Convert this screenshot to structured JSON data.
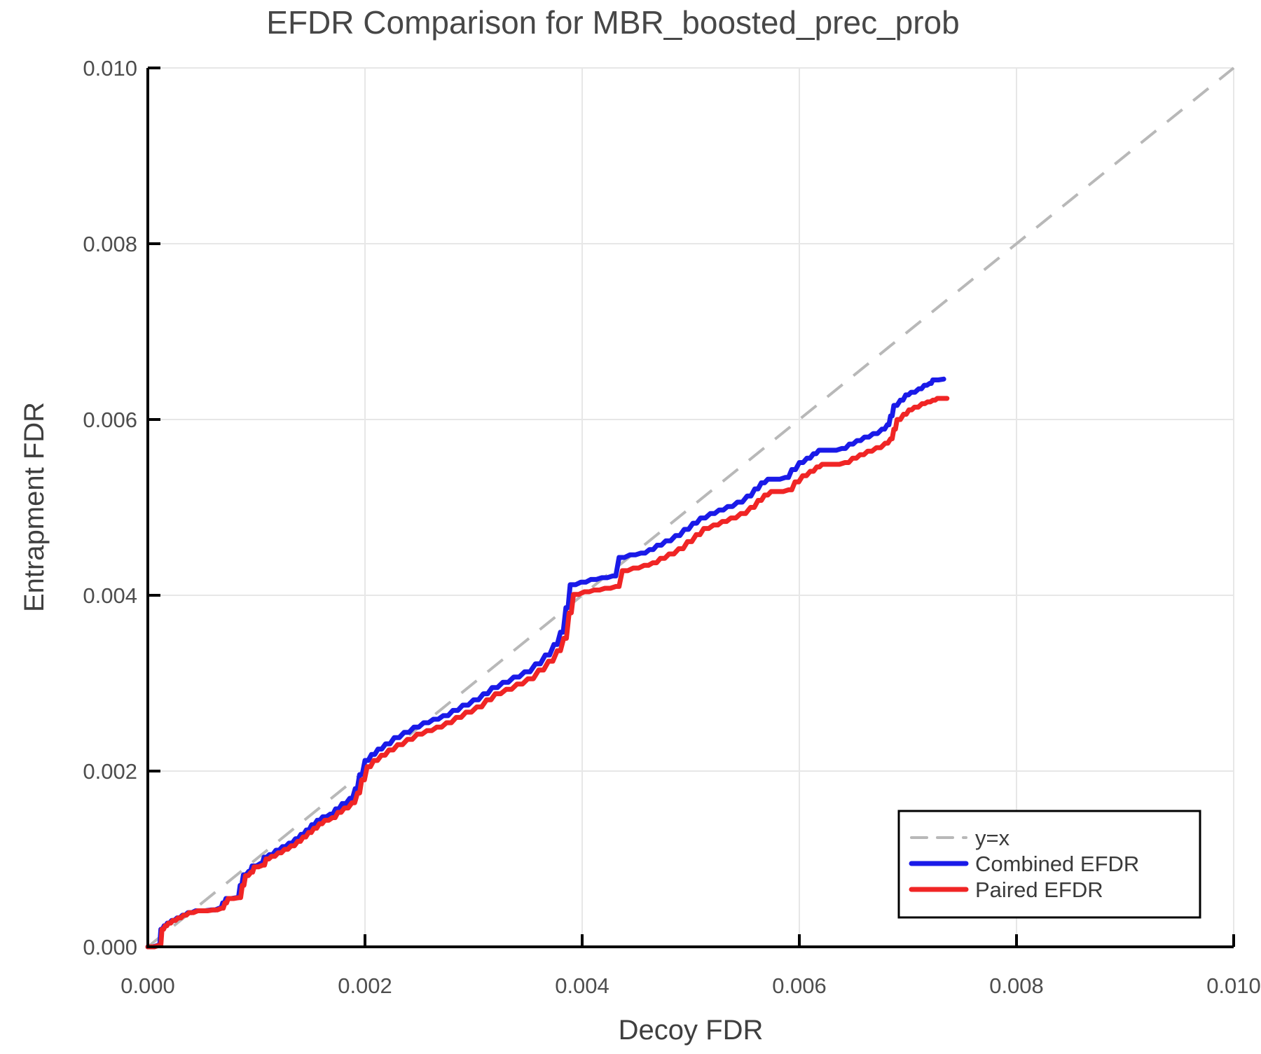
{
  "title": "EFDR Comparison for MBR_boosted_prec_prob",
  "colors": {
    "combined": "#1a1ae8",
    "paired": "#f02525",
    "identity": "#b8b8b8",
    "grid": "#e7e7e7",
    "axis": "#000000",
    "tick_label": "#4d4d4d",
    "axis_label": "#3f3f3f",
    "title": "#474747",
    "legend_text": "#3a3a3a",
    "legend_border": "#000000",
    "legend_bg": "#ffffff"
  },
  "chart_data": {
    "type": "line",
    "title": "EFDR Comparison for MBR_boosted_prec_prob",
    "xlabel": "Decoy FDR",
    "ylabel": "Entrapment FDR",
    "xlim": [
      0,
      0.01
    ],
    "ylim": [
      0,
      0.01
    ],
    "grid": true,
    "xticks": {
      "values": [
        0,
        0.002,
        0.004,
        0.006,
        0.008,
        0.01
      ],
      "labels": [
        "0.000",
        "0.002",
        "0.004",
        "0.006",
        "0.008",
        "0.010"
      ]
    },
    "yticks": {
      "values": [
        0,
        0.002,
        0.004,
        0.006,
        0.008,
        0.01
      ],
      "labels": [
        "0.000",
        "0.002",
        "0.004",
        "0.006",
        "0.008",
        "0.010"
      ]
    },
    "legend": {
      "position": "lower right",
      "items": [
        {
          "label": "y=x",
          "style": "dashed",
          "color": "#b8b8b8"
        },
        {
          "label": "Combined EFDR",
          "style": "solid",
          "color": "#1a1ae8"
        },
        {
          "label": "Paired EFDR",
          "style": "solid",
          "color": "#f02525"
        }
      ]
    },
    "reference_line": {
      "name": "y=x",
      "from": [
        0,
        0
      ],
      "to": [
        0.01,
        0.01
      ]
    },
    "series": [
      {
        "name": "Combined EFDR",
        "color": "#1a1ae8",
        "points": [
          [
            0.0,
            0.0
          ],
          [
            0.0001,
            2e-05
          ],
          [
            0.00012,
            0.0002
          ],
          [
            0.00015,
            0.00024
          ],
          [
            0.00018,
            0.00027
          ],
          [
            0.00022,
            0.0003
          ],
          [
            0.00027,
            0.00033
          ],
          [
            0.00032,
            0.00036
          ],
          [
            0.00037,
            0.00039
          ],
          [
            0.00044,
            0.00041
          ],
          [
            0.00058,
            0.00042
          ],
          [
            0.00066,
            0.00044
          ],
          [
            0.00069,
            0.0005
          ],
          [
            0.00072,
            0.00055
          ],
          [
            0.00082,
            0.00056
          ],
          [
            0.00085,
            0.0007
          ],
          [
            0.00088,
            0.00082
          ],
          [
            0.00093,
            0.00086
          ],
          [
            0.00096,
            0.00092
          ],
          [
            0.00104,
            0.00095
          ],
          [
            0.00107,
            0.00102
          ],
          [
            0.00112,
            0.00105
          ],
          [
            0.00118,
            0.0011
          ],
          [
            0.00124,
            0.00114
          ],
          [
            0.0013,
            0.00118
          ],
          [
            0.00136,
            0.00123
          ],
          [
            0.00141,
            0.00128
          ],
          [
            0.00146,
            0.00133
          ],
          [
            0.00151,
            0.00139
          ],
          [
            0.00156,
            0.00144
          ],
          [
            0.00161,
            0.00148
          ],
          [
            0.00168,
            0.00151
          ],
          [
            0.00173,
            0.00157
          ],
          [
            0.00179,
            0.00163
          ],
          [
            0.00186,
            0.00169
          ],
          [
            0.00191,
            0.0018
          ],
          [
            0.00195,
            0.00196
          ],
          [
            0.002,
            0.00212
          ],
          [
            0.00206,
            0.00219
          ],
          [
            0.00212,
            0.00225
          ],
          [
            0.00219,
            0.00231
          ],
          [
            0.00227,
            0.00238
          ],
          [
            0.00236,
            0.00244
          ],
          [
            0.00245,
            0.0025
          ],
          [
            0.00254,
            0.00255
          ],
          [
            0.00263,
            0.00259
          ],
          [
            0.00272,
            0.00263
          ],
          [
            0.00281,
            0.00269
          ],
          [
            0.0029,
            0.00275
          ],
          [
            0.003,
            0.00281
          ],
          [
            0.00309,
            0.00288
          ],
          [
            0.00317,
            0.00295
          ],
          [
            0.00327,
            0.00301
          ],
          [
            0.00337,
            0.00307
          ],
          [
            0.00347,
            0.00313
          ],
          [
            0.00357,
            0.00322
          ],
          [
            0.00366,
            0.00332
          ],
          [
            0.00374,
            0.00344
          ],
          [
            0.0038,
            0.00358
          ],
          [
            0.00385,
            0.00386
          ],
          [
            0.00389,
            0.00412
          ],
          [
            0.00399,
            0.00415
          ],
          [
            0.00408,
            0.00418
          ],
          [
            0.00418,
            0.0042
          ],
          [
            0.00428,
            0.00422
          ],
          [
            0.00434,
            0.00443
          ],
          [
            0.00444,
            0.00446
          ],
          [
            0.00454,
            0.00448
          ],
          [
            0.00462,
            0.00452
          ],
          [
            0.00469,
            0.00457
          ],
          [
            0.00477,
            0.00462
          ],
          [
            0.00486,
            0.00468
          ],
          [
            0.00494,
            0.00475
          ],
          [
            0.00502,
            0.00482
          ],
          [
            0.00509,
            0.00488
          ],
          [
            0.00518,
            0.00493
          ],
          [
            0.00526,
            0.00497
          ],
          [
            0.00534,
            0.00501
          ],
          [
            0.00543,
            0.00506
          ],
          [
            0.00552,
            0.00513
          ],
          [
            0.00559,
            0.00521
          ],
          [
            0.00565,
            0.00528
          ],
          [
            0.00571,
            0.00532
          ],
          [
            0.00587,
            0.00534
          ],
          [
            0.00593,
            0.00543
          ],
          [
            0.006,
            0.00551
          ],
          [
            0.00607,
            0.00556
          ],
          [
            0.00613,
            0.00561
          ],
          [
            0.00618,
            0.00565
          ],
          [
            0.00639,
            0.00567
          ],
          [
            0.00646,
            0.00572
          ],
          [
            0.00653,
            0.00576
          ],
          [
            0.0066,
            0.0058
          ],
          [
            0.00668,
            0.00584
          ],
          [
            0.00676,
            0.00589
          ],
          [
            0.00681,
            0.00594
          ],
          [
            0.00684,
            0.00604
          ],
          [
            0.00687,
            0.00616
          ],
          [
            0.00693,
            0.00622
          ],
          [
            0.00698,
            0.00628
          ],
          [
            0.00703,
            0.00631
          ],
          [
            0.0071,
            0.00635
          ],
          [
            0.00715,
            0.00639
          ],
          [
            0.0072,
            0.00641
          ],
          [
            0.00723,
            0.00645
          ],
          [
            0.00733,
            0.00646
          ]
        ]
      },
      {
        "name": "Paired EFDR",
        "color": "#f02525",
        "points": [
          [
            0.0,
            0.0
          ],
          [
            0.00011,
            2e-05
          ],
          [
            0.00013,
            0.0002
          ],
          [
            0.00016,
            0.00024
          ],
          [
            0.00019,
            0.00027
          ],
          [
            0.00023,
            0.0003
          ],
          [
            0.00028,
            0.00033
          ],
          [
            0.00033,
            0.00036
          ],
          [
            0.00038,
            0.00039
          ],
          [
            0.00046,
            0.00041
          ],
          [
            0.0006,
            0.00042
          ],
          [
            0.00068,
            0.00044
          ],
          [
            0.00071,
            0.0005
          ],
          [
            0.00074,
            0.00055
          ],
          [
            0.00084,
            0.00056
          ],
          [
            0.00087,
            0.0007
          ],
          [
            0.0009,
            0.00081
          ],
          [
            0.00095,
            0.00085
          ],
          [
            0.00098,
            0.00091
          ],
          [
            0.00106,
            0.00093
          ],
          [
            0.00109,
            0.001
          ],
          [
            0.00114,
            0.00103
          ],
          [
            0.0012,
            0.00107
          ],
          [
            0.00126,
            0.00111
          ],
          [
            0.00132,
            0.00115
          ],
          [
            0.00138,
            0.0012
          ],
          [
            0.00143,
            0.00125
          ],
          [
            0.00148,
            0.0013
          ],
          [
            0.00153,
            0.00135
          ],
          [
            0.00158,
            0.0014
          ],
          [
            0.00163,
            0.00144
          ],
          [
            0.0017,
            0.00147
          ],
          [
            0.00175,
            0.00153
          ],
          [
            0.00181,
            0.00158
          ],
          [
            0.00188,
            0.00164
          ],
          [
            0.00193,
            0.00175
          ],
          [
            0.00197,
            0.0019
          ],
          [
            0.00202,
            0.00205
          ],
          [
            0.00208,
            0.00212
          ],
          [
            0.00215,
            0.00218
          ],
          [
            0.00222,
            0.00224
          ],
          [
            0.0023,
            0.0023
          ],
          [
            0.00239,
            0.00236
          ],
          [
            0.00248,
            0.00242
          ],
          [
            0.00257,
            0.00246
          ],
          [
            0.00266,
            0.0025
          ],
          [
            0.00275,
            0.00255
          ],
          [
            0.00284,
            0.00261
          ],
          [
            0.00293,
            0.00267
          ],
          [
            0.00303,
            0.00273
          ],
          [
            0.00312,
            0.00281
          ],
          [
            0.0032,
            0.00288
          ],
          [
            0.0033,
            0.00293
          ],
          [
            0.0034,
            0.00299
          ],
          [
            0.0035,
            0.00305
          ],
          [
            0.0036,
            0.00315
          ],
          [
            0.00369,
            0.00325
          ],
          [
            0.00377,
            0.00337
          ],
          [
            0.00383,
            0.00351
          ],
          [
            0.00388,
            0.0038
          ],
          [
            0.00392,
            0.00401
          ],
          [
            0.00402,
            0.00404
          ],
          [
            0.00411,
            0.00406
          ],
          [
            0.00421,
            0.00408
          ],
          [
            0.00431,
            0.0041
          ],
          [
            0.00437,
            0.00428
          ],
          [
            0.00447,
            0.00431
          ],
          [
            0.00457,
            0.00434
          ],
          [
            0.00465,
            0.00437
          ],
          [
            0.00472,
            0.00442
          ],
          [
            0.0048,
            0.00447
          ],
          [
            0.00489,
            0.00453
          ],
          [
            0.00497,
            0.00461
          ],
          [
            0.00505,
            0.00469
          ],
          [
            0.00512,
            0.00476
          ],
          [
            0.00521,
            0.0048
          ],
          [
            0.00529,
            0.00484
          ],
          [
            0.00537,
            0.00488
          ],
          [
            0.00546,
            0.00493
          ],
          [
            0.00555,
            0.005
          ],
          [
            0.00562,
            0.00508
          ],
          [
            0.00568,
            0.00514
          ],
          [
            0.00574,
            0.00518
          ],
          [
            0.0059,
            0.0052
          ],
          [
            0.00596,
            0.00529
          ],
          [
            0.00603,
            0.00536
          ],
          [
            0.0061,
            0.00541
          ],
          [
            0.00616,
            0.00546
          ],
          [
            0.00621,
            0.00549
          ],
          [
            0.00642,
            0.00551
          ],
          [
            0.00649,
            0.00556
          ],
          [
            0.00656,
            0.0056
          ],
          [
            0.00663,
            0.00564
          ],
          [
            0.00671,
            0.00568
          ],
          [
            0.00679,
            0.00573
          ],
          [
            0.00684,
            0.00578
          ],
          [
            0.00687,
            0.00589
          ],
          [
            0.0069,
            0.006
          ],
          [
            0.00696,
            0.00606
          ],
          [
            0.00701,
            0.00611
          ],
          [
            0.00706,
            0.00614
          ],
          [
            0.00713,
            0.00618
          ],
          [
            0.00718,
            0.0062
          ],
          [
            0.00723,
            0.00622
          ],
          [
            0.00727,
            0.00624
          ],
          [
            0.00736,
            0.00624
          ]
        ]
      }
    ]
  }
}
